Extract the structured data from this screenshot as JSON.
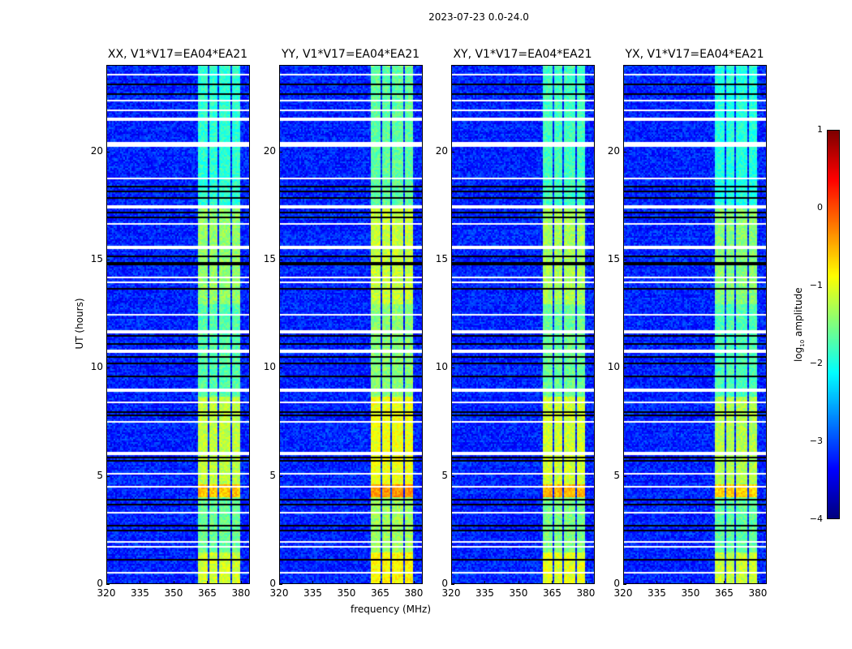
{
  "chart_data": {
    "type": "heatmap",
    "title": "2023-07-23 0.0-24.0",
    "xlabel": "frequency (MHz)",
    "ylabel": "UT (hours)",
    "xlim": [
      320,
      384
    ],
    "ylim": [
      0,
      24
    ],
    "xticks": [
      320,
      335,
      350,
      365,
      380
    ],
    "yticks": [
      0,
      5,
      10,
      15,
      20
    ],
    "panels": [
      {
        "title": "XX, V1*V17=EA04*EA21",
        "band_boost": 0
      },
      {
        "title": "YY, V1*V17=EA04*EA21",
        "band_boost": 0.25
      },
      {
        "title": "XY, V1*V17=EA04*EA21",
        "band_boost": 0.1
      },
      {
        "title": "YX, V1*V17=EA04*EA21",
        "band_boost": -0.05
      }
    ],
    "background_log10_amplitude": -3.2,
    "signal_subbands_MHz": [
      [
        360.5,
        365.2
      ],
      [
        365.5,
        369.5
      ],
      [
        370.2,
        374.9
      ],
      [
        375.7,
        379.6
      ]
    ],
    "signal_log10_amplitude_by_hour": [
      [
        0,
        1.5,
        -1.1
      ],
      [
        1.5,
        4,
        -1.6
      ],
      [
        4,
        4.6,
        -0.6
      ],
      [
        4.6,
        8.7,
        -1.2
      ],
      [
        8.7,
        13,
        -1.7
      ],
      [
        13,
        17.5,
        -1.4
      ],
      [
        17.5,
        24,
        -1.9
      ]
    ],
    "flagged_hours_white": [
      0.55,
      1.75,
      1.95,
      3.3,
      4.5,
      5.1,
      6.05,
      7.5,
      8.45,
      9.0,
      10.8,
      11.7,
      12.5,
      14.0,
      14.2,
      15.6,
      16.7,
      17.5,
      18.8,
      20.4,
      21.55,
      21.95,
      22.4,
      23.6
    ],
    "dropout_hours_black": [
      1.1,
      2.5,
      2.7,
      3.7,
      3.9,
      5.7,
      5.85,
      7.85,
      8.0,
      9.6,
      10.2,
      10.5,
      11.1,
      11.5,
      13.7,
      14.8,
      14.9,
      15.2,
      17.0,
      17.2,
      17.9,
      18.2,
      18.4,
      22.7,
      23.2
    ],
    "colorbar": {
      "label_main": "log",
      "label_sub": "10",
      "label_rest": " amplitude",
      "range": [
        -4,
        1
      ],
      "ticks": [
        "1",
        "0",
        "−1",
        "−2",
        "−3",
        "−4"
      ],
      "tick_values": [
        1,
        0,
        -1,
        -2,
        -3,
        -4
      ]
    }
  }
}
